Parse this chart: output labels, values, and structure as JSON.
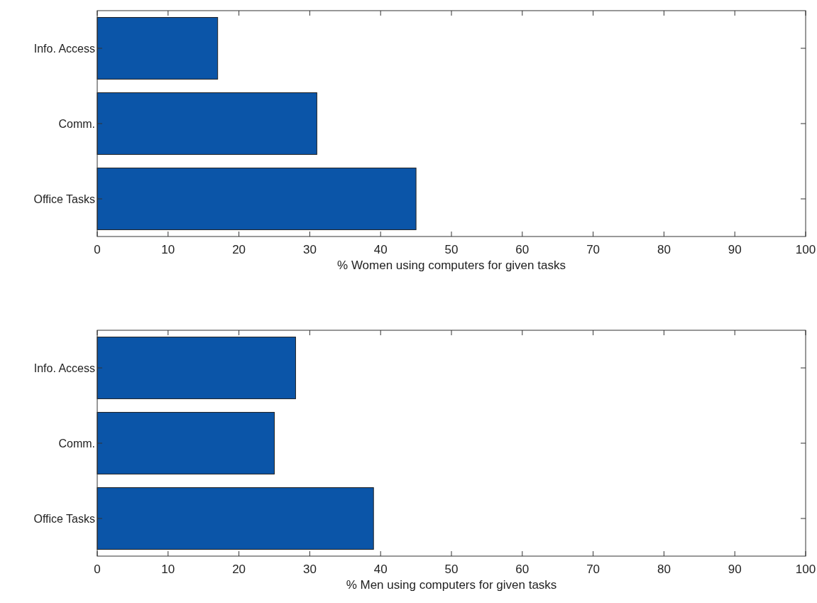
{
  "chart_data": [
    {
      "type": "bar",
      "orientation": "horizontal",
      "categories": [
        "Info. Access",
        "Comm.",
        "Office Tasks"
      ],
      "values": [
        17,
        31,
        45
      ],
      "color": "#0b55a8",
      "xlabel": "% Women using computers for given tasks",
      "xlim": [
        0,
        100
      ],
      "xticks": [
        0,
        10,
        20,
        30,
        40,
        50,
        60,
        70,
        80,
        90,
        100
      ],
      "grid": false
    },
    {
      "type": "bar",
      "orientation": "horizontal",
      "categories": [
        "Info. Access",
        "Comm.",
        "Office Tasks"
      ],
      "values": [
        28,
        25,
        39
      ],
      "color": "#0b55a8",
      "xlabel": "% Men using computers for given tasks",
      "xlim": [
        0,
        100
      ],
      "xticks": [
        0,
        10,
        20,
        30,
        40,
        50,
        60,
        70,
        80,
        90,
        100
      ],
      "grid": false
    }
  ]
}
